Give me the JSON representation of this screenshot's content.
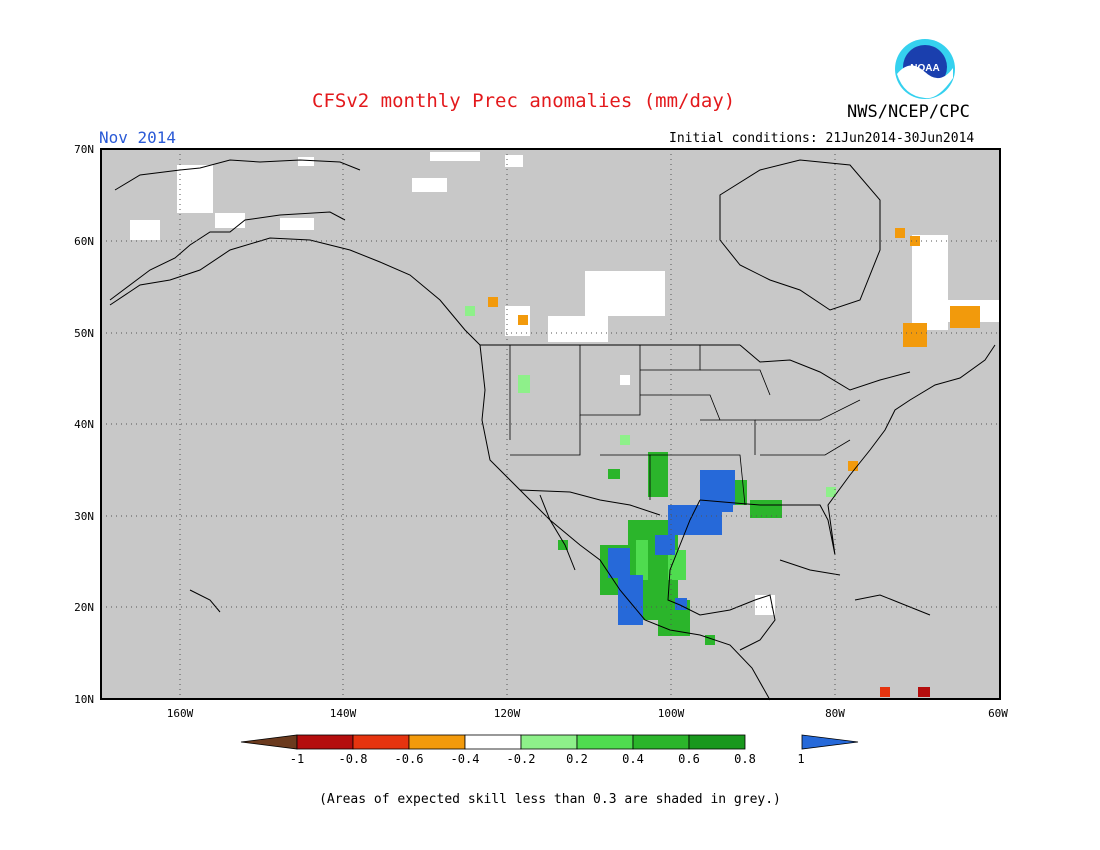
{
  "title": "CFSv2 monthly Prec anomalies (mm/day)",
  "month": "Nov 2014",
  "initial_conditions": "Initial conditions: 21Jun2014-30Jun2014",
  "agency": "NWS/NCEP/CPC",
  "logo_text": "NOAA",
  "footnote": "(Areas of expected skill less than 0.3 are shaded in grey.)",
  "lat_labels": [
    "70N",
    "60N",
    "50N",
    "40N",
    "30N",
    "20N",
    "10N"
  ],
  "lon_labels": [
    "160W",
    "140W",
    "120W",
    "100W",
    "80W",
    "60W"
  ],
  "colorbar": {
    "labels": [
      "-1",
      "-0.8",
      "-0.6",
      "-0.4",
      "-0.2",
      "0.2",
      "0.4",
      "0.6",
      "0.8",
      "1"
    ],
    "colors": [
      "#6b3a1e",
      "#b40d0d",
      "#e6340f",
      "#f29a0c",
      "#ffffff",
      "#8ef08a",
      "#4fdc4f",
      "#2bb52b",
      "#19981d",
      "#2669d9"
    ]
  },
  "colors": {
    "grey_mask": "#c8c8c8",
    "title": "#e3191c",
    "month": "#2a5ad6"
  }
}
